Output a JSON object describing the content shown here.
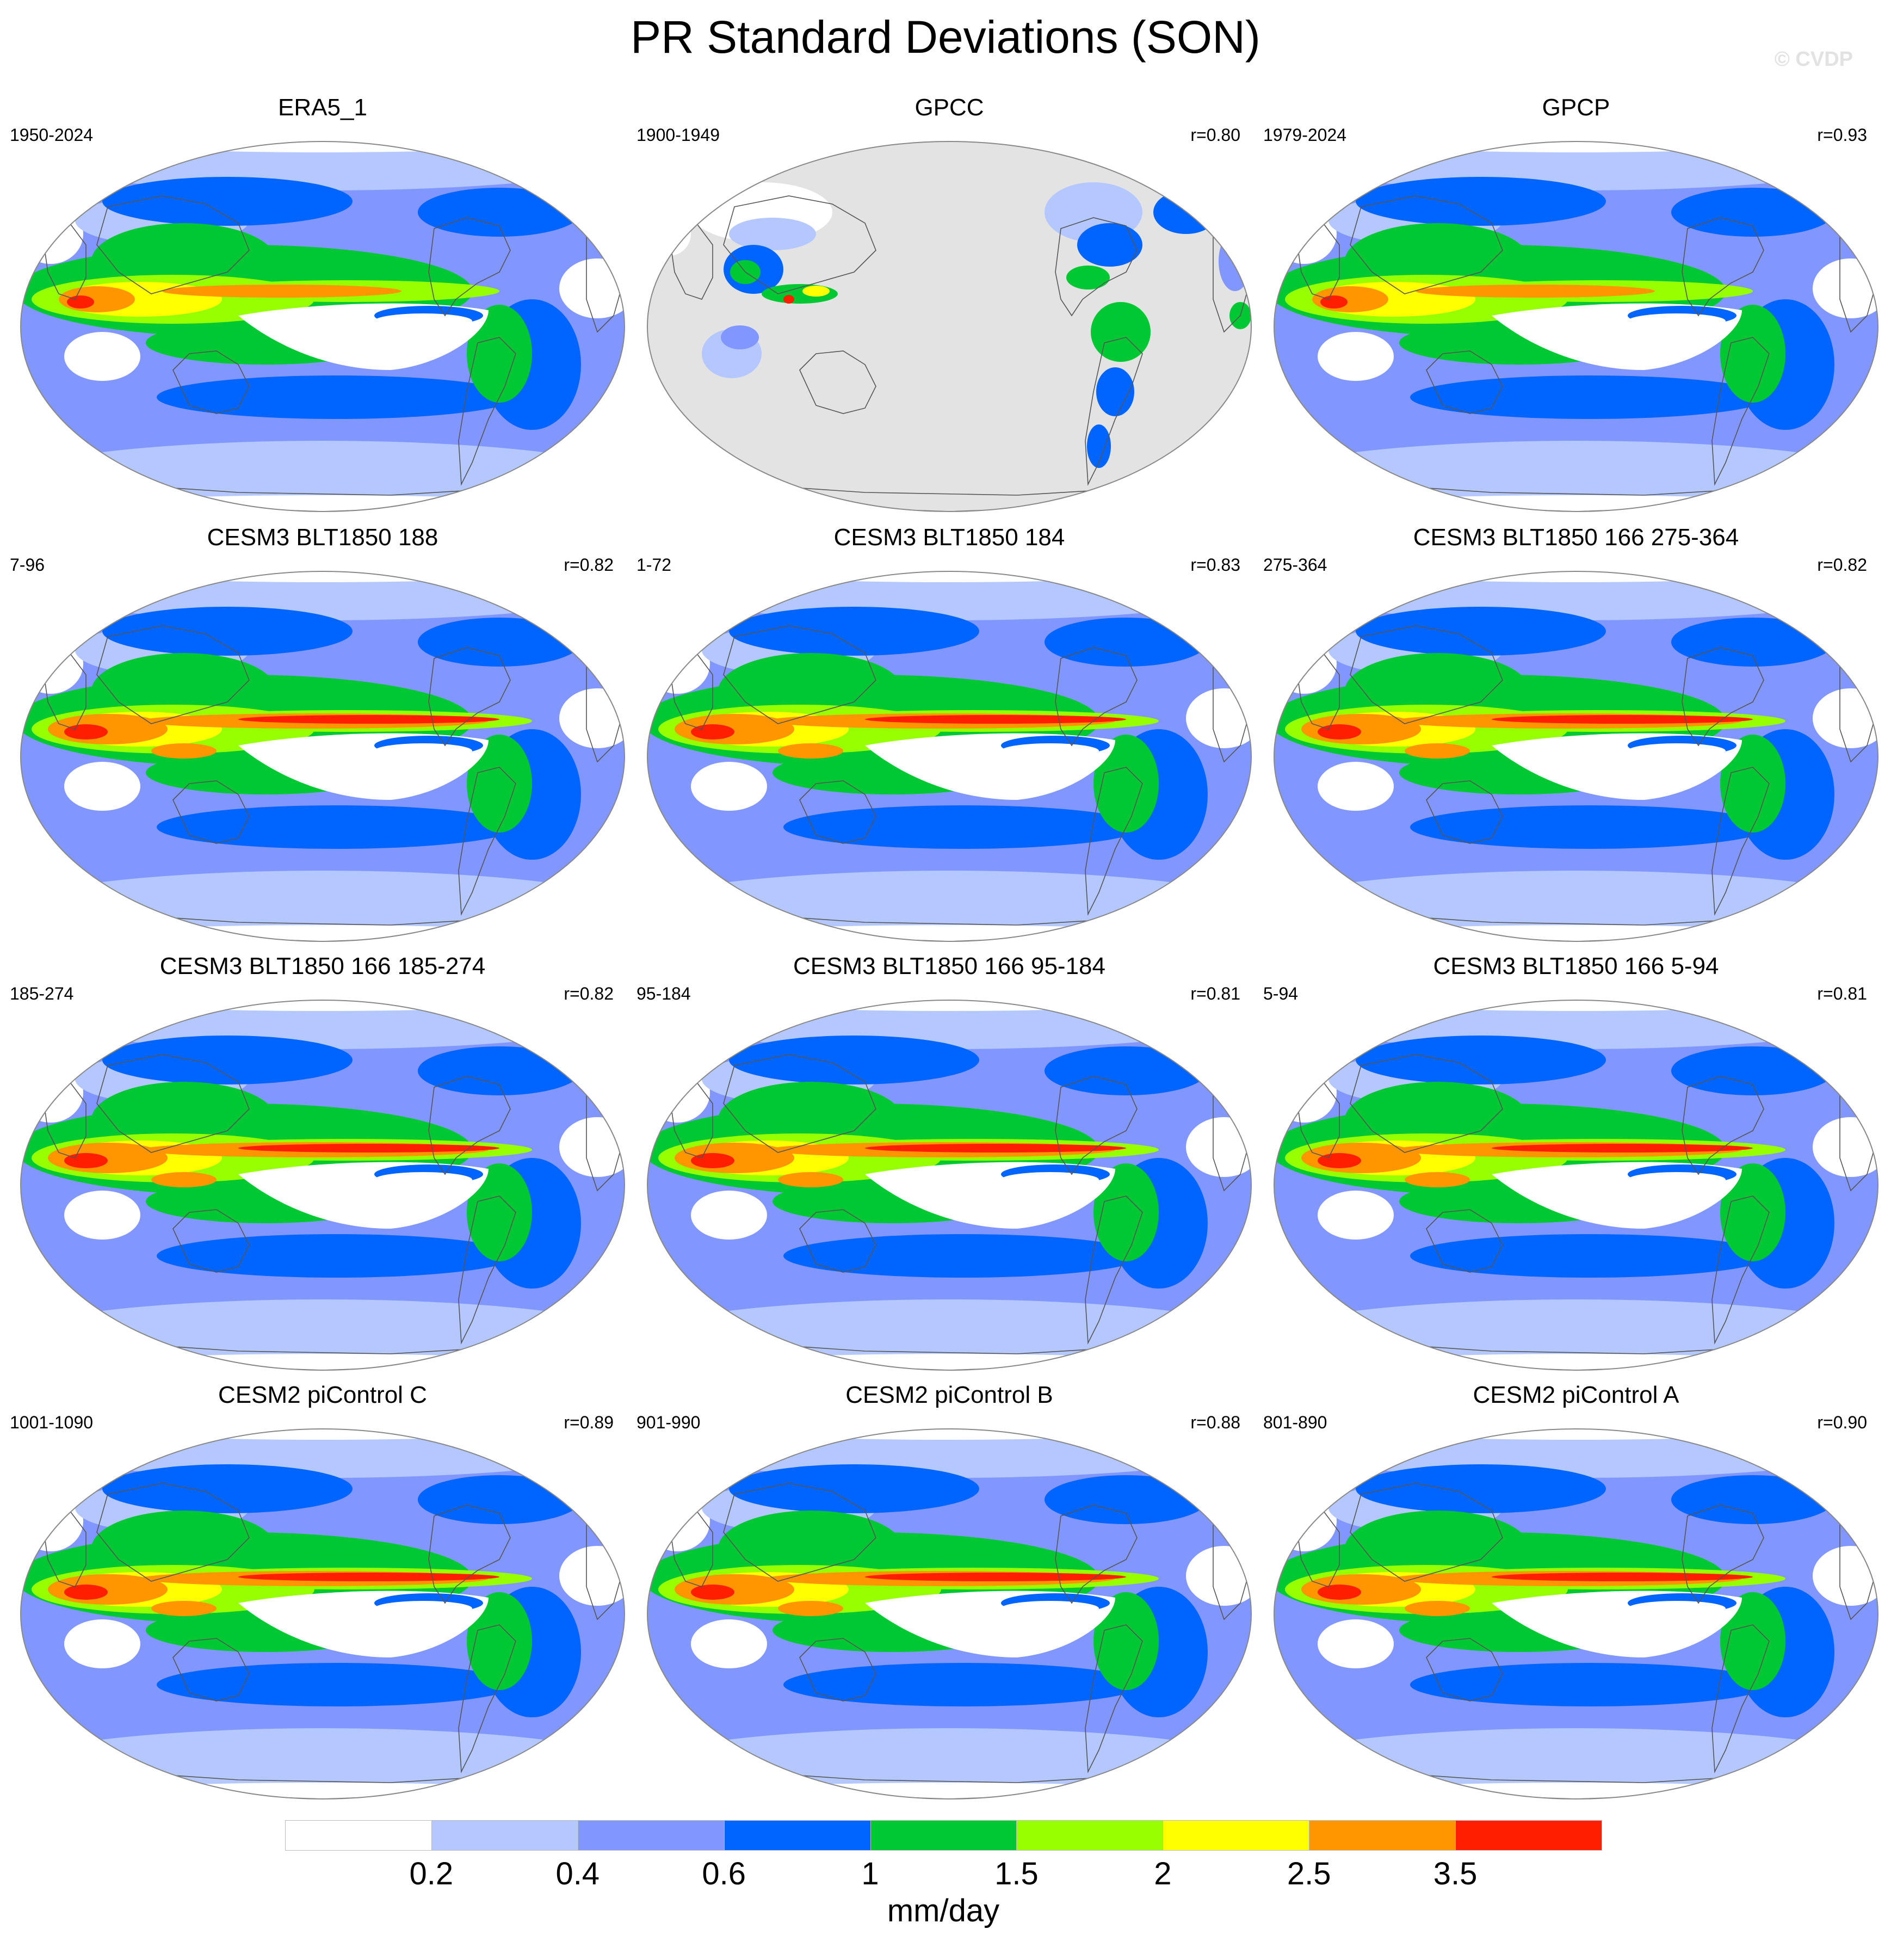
{
  "title": "PR Standard Deviations (SON)",
  "watermark": "© CVDP",
  "colors": {
    "background": "#ffffff",
    "missing": "#e3e3e3",
    "outline": "#888888",
    "land": "#555555"
  },
  "panels": [
    {
      "title": "ERA5_1",
      "years": "1950-2024",
      "corr": "",
      "variant": "obs"
    },
    {
      "title": "GPCC",
      "years": "1900-1949",
      "corr": "r=0.80",
      "variant": "landonly"
    },
    {
      "title": "GPCP",
      "years": "1979-2024",
      "corr": "r=0.93",
      "variant": "obs"
    },
    {
      "title": "CESM3 BLT1850 188",
      "years": "7-96",
      "corr": "r=0.82",
      "variant": "cesm3"
    },
    {
      "title": "CESM3 BLT1850 184",
      "years": "1-72",
      "corr": "r=0.83",
      "variant": "cesm3"
    },
    {
      "title": "CESM3 BLT1850 166 275-364",
      "years": "275-364",
      "corr": "r=0.82",
      "variant": "cesm3"
    },
    {
      "title": "CESM3 BLT1850 166 185-274",
      "years": "185-274",
      "corr": "r=0.82",
      "variant": "cesm3"
    },
    {
      "title": "CESM3 BLT1850 166 95-184",
      "years": "95-184",
      "corr": "r=0.81",
      "variant": "cesm3"
    },
    {
      "title": "CESM3 BLT1850 166 5-94",
      "years": "5-94",
      "corr": "r=0.81",
      "variant": "cesm3"
    },
    {
      "title": "CESM2 piControl C",
      "years": "1001-1090",
      "corr": "r=0.89",
      "variant": "cesm2"
    },
    {
      "title": "CESM2 piControl B",
      "years": "901-990",
      "corr": "r=0.88",
      "variant": "cesm2"
    },
    {
      "title": "CESM2 piControl A",
      "years": "801-890",
      "corr": "r=0.90",
      "variant": "cesm2"
    }
  ],
  "colorbar": {
    "colors": [
      "#ffffff",
      "#b4c8ff",
      "#8296ff",
      "#0064ff",
      "#00c832",
      "#96ff00",
      "#ffff00",
      "#ff9600",
      "#ff1e00"
    ],
    "labels": [
      "0.2",
      "0.4",
      "0.6",
      "1",
      "1.5",
      "2",
      "2.5",
      "3.5"
    ],
    "units": "mm/day"
  }
}
